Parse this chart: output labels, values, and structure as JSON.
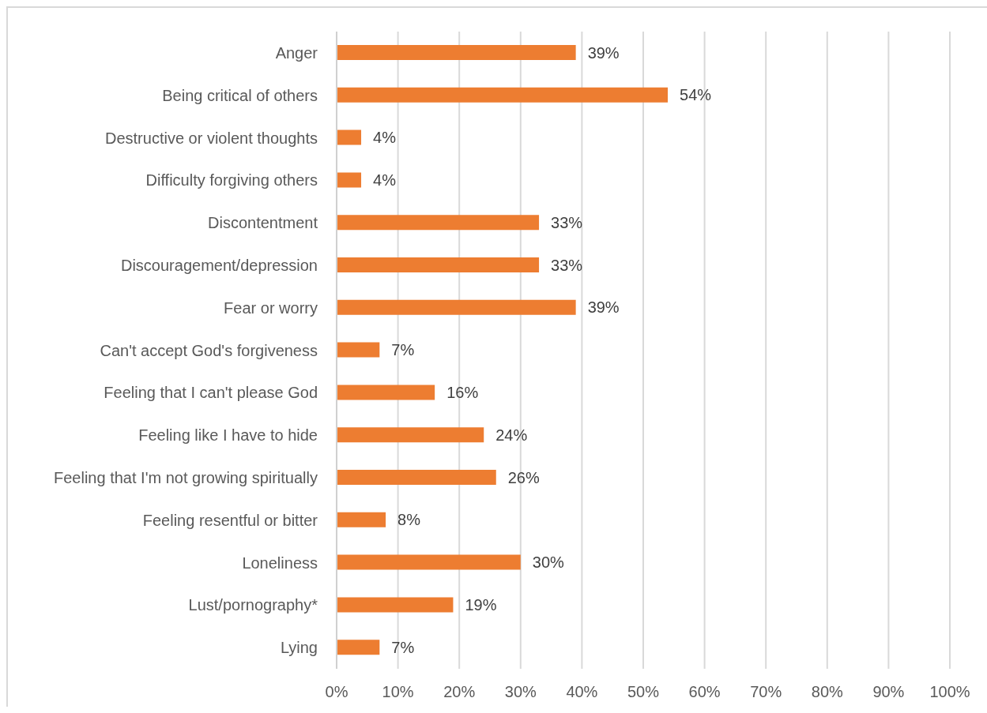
{
  "chart_data": {
    "type": "bar",
    "orientation": "horizontal",
    "categories": [
      "Anger",
      "Being critical of others",
      "Destructive or violent thoughts",
      "Difficulty forgiving others",
      "Discontentment",
      "Discouragement/depression",
      "Fear or worry",
      "Can't accept God's forgiveness",
      "Feeling that I can't please God",
      "Feeling like I have to hide",
      "Feeling that I'm not growing spiritually",
      "Feeling resentful or bitter",
      "Loneliness",
      "Lust/pornography*",
      "Lying"
    ],
    "values": [
      39,
      54,
      4,
      4,
      33,
      33,
      39,
      7,
      16,
      24,
      26,
      8,
      30,
      19,
      7
    ],
    "value_labels": [
      "39%",
      "54%",
      "4%",
      "4%",
      "33%",
      "33%",
      "39%",
      "7%",
      "16%",
      "24%",
      "26%",
      "8%",
      "30%",
      "19%",
      "7%"
    ],
    "color": "#ed7d31",
    "xlim": [
      0,
      100
    ],
    "xticks": [
      {
        "value": 0,
        "label": "0%"
      },
      {
        "value": 10,
        "label": "10%"
      },
      {
        "value": 20,
        "label": "20%"
      },
      {
        "value": 30,
        "label": "30%"
      },
      {
        "value": 40,
        "label": "40%"
      },
      {
        "value": 50,
        "label": "50%"
      },
      {
        "value": 60,
        "label": "60%"
      },
      {
        "value": 70,
        "label": "70%"
      },
      {
        "value": 80,
        "label": "80%"
      },
      {
        "value": 90,
        "label": "90%"
      },
      {
        "value": 100,
        "label": "100%"
      }
    ],
    "grid": "x"
  }
}
